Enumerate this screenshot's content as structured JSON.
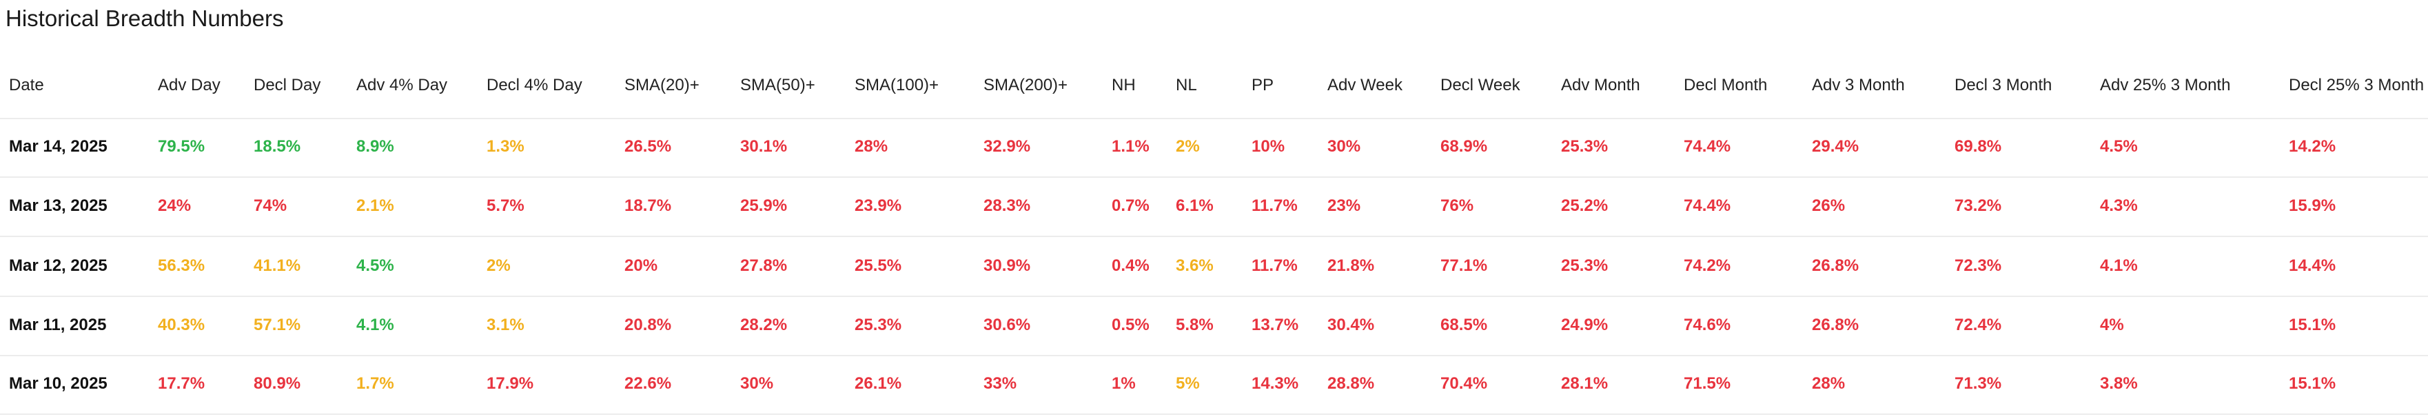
{
  "title": "Historical Breadth Numbers",
  "table": {
    "headers": [
      "Date",
      "Adv Day",
      "Decl Day",
      "Adv 4% Day",
      "Decl 4% Day",
      "SMA(20)+",
      "SMA(50)+",
      "SMA(100)+",
      "SMA(200)+",
      "NH",
      "NL",
      "PP",
      "Adv Week",
      "Decl Week",
      "Adv Month",
      "Decl Month",
      "Adv 3 Month",
      "Decl 3 Month",
      "Adv 25% 3 Month",
      "Decl 25% 3 Month"
    ],
    "rows": [
      {
        "date": "Mar 14, 2025",
        "cells": [
          "79.5%",
          "18.5%",
          "8.9%",
          "1.3%",
          "26.5%",
          "30.1%",
          "28%",
          "32.9%",
          "1.1%",
          "2%",
          "10%",
          "30%",
          "68.9%",
          "25.3%",
          "74.4%",
          "29.4%",
          "69.8%",
          "4.5%",
          "14.2%"
        ],
        "colors": [
          "#2db34a",
          "#2db34a",
          "#2db34a",
          "#f2b01e",
          "#e8333e",
          "#e8333e",
          "#e8333e",
          "#e8333e",
          "#e8333e",
          "#f2b01e",
          "#e8333e",
          "#e8333e",
          "#e8333e",
          "#e8333e",
          "#e8333e",
          "#e8333e",
          "#e8333e",
          "#e8333e",
          "#e8333e"
        ]
      },
      {
        "date": "Mar 13, 2025",
        "cells": [
          "24%",
          "74%",
          "2.1%",
          "5.7%",
          "18.7%",
          "25.9%",
          "23.9%",
          "28.3%",
          "0.7%",
          "6.1%",
          "11.7%",
          "23%",
          "76%",
          "25.2%",
          "74.4%",
          "26%",
          "73.2%",
          "4.3%",
          "15.9%"
        ],
        "colors": [
          "#e8333e",
          "#e8333e",
          "#f2b01e",
          "#e8333e",
          "#e8333e",
          "#e8333e",
          "#e8333e",
          "#e8333e",
          "#e8333e",
          "#e8333e",
          "#e8333e",
          "#e8333e",
          "#e8333e",
          "#e8333e",
          "#e8333e",
          "#e8333e",
          "#e8333e",
          "#e8333e",
          "#e8333e"
        ]
      },
      {
        "date": "Mar 12, 2025",
        "cells": [
          "56.3%",
          "41.1%",
          "4.5%",
          "2%",
          "20%",
          "27.8%",
          "25.5%",
          "30.9%",
          "0.4%",
          "3.6%",
          "11.7%",
          "21.8%",
          "77.1%",
          "25.3%",
          "74.2%",
          "26.8%",
          "72.3%",
          "4.1%",
          "14.4%"
        ],
        "colors": [
          "#f2b01e",
          "#f2b01e",
          "#2db34a",
          "#f2b01e",
          "#e8333e",
          "#e8333e",
          "#e8333e",
          "#e8333e",
          "#e8333e",
          "#f2b01e",
          "#e8333e",
          "#e8333e",
          "#e8333e",
          "#e8333e",
          "#e8333e",
          "#e8333e",
          "#e8333e",
          "#e8333e",
          "#e8333e"
        ]
      },
      {
        "date": "Mar 11, 2025",
        "cells": [
          "40.3%",
          "57.1%",
          "4.1%",
          "3.1%",
          "20.8%",
          "28.2%",
          "25.3%",
          "30.6%",
          "0.5%",
          "5.8%",
          "13.7%",
          "30.4%",
          "68.5%",
          "24.9%",
          "74.6%",
          "26.8%",
          "72.4%",
          "4%",
          "15.1%"
        ],
        "colors": [
          "#f2b01e",
          "#f2b01e",
          "#2db34a",
          "#f2b01e",
          "#e8333e",
          "#e8333e",
          "#e8333e",
          "#e8333e",
          "#e8333e",
          "#e8333e",
          "#e8333e",
          "#e8333e",
          "#e8333e",
          "#e8333e",
          "#e8333e",
          "#e8333e",
          "#e8333e",
          "#e8333e",
          "#e8333e"
        ]
      },
      {
        "date": "Mar 10, 2025",
        "cells": [
          "17.7%",
          "80.9%",
          "1.7%",
          "17.9%",
          "22.6%",
          "30%",
          "26.1%",
          "33%",
          "1%",
          "5%",
          "14.3%",
          "28.8%",
          "70.4%",
          "28.1%",
          "71.5%",
          "28%",
          "71.3%",
          "3.8%",
          "15.1%"
        ],
        "colors": [
          "#e8333e",
          "#e8333e",
          "#f2b01e",
          "#e8333e",
          "#e8333e",
          "#e8333e",
          "#e8333e",
          "#e8333e",
          "#e8333e",
          "#f2b01e",
          "#e8333e",
          "#e8333e",
          "#e8333e",
          "#e8333e",
          "#e8333e",
          "#e8333e",
          "#e8333e",
          "#e8333e",
          "#e8333e"
        ]
      }
    ]
  }
}
